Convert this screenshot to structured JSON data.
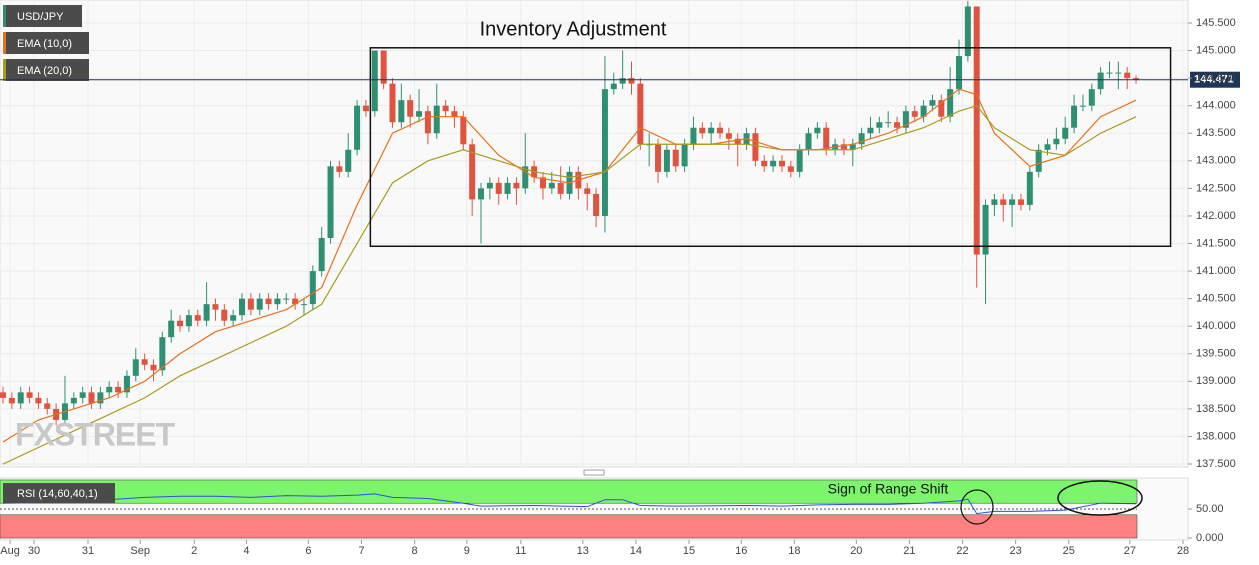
{
  "chart_data": {
    "type": "candlestick",
    "title": "Inventory Adjustment",
    "symbol": "USD/JPY",
    "watermark": "FXSTREET",
    "colors": {
      "up": "#2f8f72",
      "down": "#e0533f",
      "last": "#1e3557"
    },
    "xlim": [
      -0.34,
      133.87
    ],
    "xticks": [
      {
        "value": 0.8,
        "label": "Aug"
      },
      {
        "value": 3.5,
        "label": "30"
      },
      {
        "value": 9.6,
        "label": "31"
      },
      {
        "value": 15.5,
        "label": "Sep"
      },
      {
        "value": 21.6,
        "label": "2"
      },
      {
        "value": 27.5,
        "label": "4"
      },
      {
        "value": 34.5,
        "label": "6"
      },
      {
        "value": 40.5,
        "label": "7"
      },
      {
        "value": 46.5,
        "label": "8"
      },
      {
        "value": 52.4,
        "label": "9"
      },
      {
        "value": 58.5,
        "label": "11"
      },
      {
        "value": 65.5,
        "label": "13"
      },
      {
        "value": 71.5,
        "label": "14"
      },
      {
        "value": 77.5,
        "label": "15"
      },
      {
        "value": 83.4,
        "label": "16"
      },
      {
        "value": 89.4,
        "label": "18"
      },
      {
        "value": 96.4,
        "label": "20"
      },
      {
        "value": 102.4,
        "label": "21"
      },
      {
        "value": 108.4,
        "label": "22"
      },
      {
        "value": 114.4,
        "label": "23"
      },
      {
        "value": 120.4,
        "label": "25"
      },
      {
        "value": 127.3,
        "label": "27"
      },
      {
        "value": 133.3,
        "label": "28"
      }
    ],
    "ylim": [
      137.446,
      145.917
    ],
    "yticks": [
      {
        "value": 137.5,
        "label": "137.500"
      },
      {
        "value": 138,
        "label": "138.000"
      },
      {
        "value": 138.5,
        "label": "138.500"
      },
      {
        "value": 139,
        "label": "139.000"
      },
      {
        "value": 139.5,
        "label": "139.500"
      },
      {
        "value": 140,
        "label": "140.000"
      },
      {
        "value": 140.5,
        "label": "140.500"
      },
      {
        "value": 141,
        "label": "141.000"
      },
      {
        "value": 141.5,
        "label": "141.500"
      },
      {
        "value": 142,
        "label": "142.000"
      },
      {
        "value": 142.5,
        "label": "142.500"
      },
      {
        "value": 143,
        "label": "143.000"
      },
      {
        "value": 143.5,
        "label": "143.500"
      },
      {
        "value": 144,
        "label": "144.000"
      },
      {
        "value": 144.5,
        "label": "144.500"
      },
      {
        "value": 145,
        "label": "145.000"
      },
      {
        "value": 145.5,
        "label": "145.500"
      }
    ],
    "grid": true,
    "open": [
      138.8,
      138.7,
      138.6,
      138.8,
      138.7,
      138.6,
      138.5,
      138.3,
      138.6,
      138.7,
      138.8,
      138.6,
      138.8,
      138.9,
      138.8,
      139.1,
      139.4,
      139.3,
      139.2,
      139.8,
      140.1,
      140.0,
      140.2,
      140.1,
      140.4,
      140.3,
      140.1,
      140.2,
      140.5,
      140.3,
      140.5,
      140.4,
      140.5,
      140.5,
      140.4,
      140.4,
      141.0,
      141.6,
      142.9,
      142.8,
      143.2,
      144.0,
      143.9,
      145.0,
      144.4,
      143.7,
      144.1,
      143.8,
      143.9,
      143.5,
      144.0,
      143.9,
      143.8,
      143.3,
      142.3,
      142.5,
      142.6,
      142.4,
      142.6,
      142.5,
      142.9,
      142.7,
      142.5,
      142.6,
      142.4,
      142.8,
      142.5,
      142.4,
      142.0,
      144.3,
      144.4,
      144.5,
      144.4,
      143.3,
      143.3,
      142.8,
      143.2,
      142.9,
      143.3,
      143.6,
      143.5,
      143.6,
      143.5,
      143.4,
      143.3,
      143.5,
      143.0,
      142.9,
      143.0,
      142.9,
      142.8,
      143.2,
      143.5,
      143.6,
      143.2,
      143.3,
      143.2,
      143.3,
      143.5,
      143.6,
      143.7,
      143.7,
      143.6,
      143.9,
      143.8,
      144.0,
      144.1,
      143.8,
      144.3,
      144.9,
      145.8,
      141.3,
      142.2,
      142.3,
      142.2,
      142.3,
      142.2,
      142.8,
      143.2,
      143.3,
      143.4,
      143.6,
      144.0,
      144.0,
      144.3,
      144.6,
      144.6,
      144.6,
      144.5
    ],
    "high": [
      138.9,
      138.8,
      138.9,
      138.9,
      138.8,
      138.7,
      138.6,
      139.1,
      138.8,
      138.9,
      138.9,
      138.9,
      139.0,
      139.0,
      139.2,
      139.6,
      139.5,
      139.4,
      139.9,
      140.3,
      140.2,
      140.3,
      140.3,
      140.8,
      140.5,
      140.4,
      140.3,
      140.6,
      140.6,
      140.6,
      140.6,
      140.6,
      140.6,
      140.6,
      140.5,
      141.1,
      141.8,
      143.0,
      143.0,
      143.5,
      144.1,
      144.1,
      145.0,
      145.0,
      144.5,
      144.4,
      144.2,
      144.3,
      144.0,
      144.4,
      144.1,
      144.0,
      143.9,
      143.4,
      142.6,
      142.7,
      142.7,
      142.7,
      142.7,
      143.5,
      143.0,
      142.8,
      142.8,
      142.9,
      142.9,
      142.9,
      142.6,
      142.5,
      144.9,
      144.6,
      145.0,
      144.8,
      144.5,
      143.5,
      143.4,
      143.3,
      143.3,
      143.4,
      143.8,
      143.7,
      143.7,
      143.7,
      143.6,
      143.5,
      143.6,
      143.6,
      143.1,
      143.1,
      143.1,
      143.0,
      143.3,
      143.6,
      143.7,
      143.7,
      143.4,
      143.4,
      143.4,
      143.6,
      143.8,
      143.8,
      143.9,
      143.8,
      144.0,
      144.0,
      144.1,
      144.2,
      144.2,
      144.7,
      145.2,
      145.9,
      145.8,
      142.3,
      142.4,
      142.4,
      142.4,
      142.4,
      142.9,
      143.3,
      143.4,
      143.6,
      143.8,
      144.2,
      144.2,
      144.4,
      144.7,
      144.8,
      144.8,
      144.7,
      144.55
    ],
    "low": [
      138.6,
      138.5,
      138.5,
      138.6,
      138.5,
      138.4,
      138.2,
      138.2,
      138.5,
      138.6,
      138.5,
      138.5,
      138.7,
      138.7,
      138.7,
      139.0,
      139.2,
      139.0,
      139.1,
      139.7,
      139.9,
      139.9,
      140.0,
      140.0,
      140.1,
      140.0,
      140.0,
      140.1,
      140.2,
      140.2,
      140.3,
      140.3,
      140.4,
      140.3,
      140.2,
      140.3,
      140.9,
      141.5,
      142.7,
      142.7,
      143.1,
      143.8,
      143.8,
      144.3,
      143.6,
      143.6,
      143.6,
      143.7,
      143.3,
      143.4,
      143.8,
      143.6,
      143.2,
      142.0,
      141.5,
      142.3,
      142.2,
      142.3,
      142.2,
      142.4,
      142.6,
      142.3,
      142.4,
      142.3,
      142.3,
      142.3,
      142.1,
      141.8,
      141.7,
      144.2,
      144.3,
      144.2,
      143.2,
      142.9,
      142.6,
      142.7,
      142.8,
      142.8,
      143.2,
      143.4,
      143.3,
      143.4,
      143.2,
      142.9,
      143.2,
      142.9,
      142.8,
      142.8,
      142.8,
      142.7,
      142.7,
      143.1,
      143.4,
      143.1,
      143.1,
      143.1,
      142.9,
      143.2,
      143.4,
      143.5,
      143.6,
      143.5,
      143.5,
      143.7,
      143.7,
      143.9,
      143.7,
      143.7,
      144.2,
      144.8,
      140.7,
      140.4,
      142.0,
      141.9,
      141.8,
      142.1,
      142.1,
      142.7,
      143.1,
      143.2,
      143.3,
      143.5,
      143.9,
      143.9,
      144.2,
      144.5,
      144.3,
      144.3,
      144.4
    ],
    "close": [
      138.7,
      138.6,
      138.8,
      138.7,
      138.6,
      138.5,
      138.3,
      138.6,
      138.7,
      138.8,
      138.6,
      138.8,
      138.9,
      138.8,
      139.1,
      139.4,
      139.3,
      139.2,
      139.8,
      140.1,
      140.0,
      140.2,
      140.1,
      140.4,
      140.3,
      140.1,
      140.2,
      140.5,
      140.3,
      140.5,
      140.4,
      140.5,
      140.5,
      140.4,
      140.4,
      141.0,
      141.6,
      142.9,
      142.8,
      143.2,
      144.0,
      143.9,
      145.0,
      144.4,
      143.7,
      144.1,
      143.8,
      143.9,
      143.5,
      144.0,
      143.9,
      143.8,
      143.3,
      142.3,
      142.5,
      142.6,
      142.4,
      142.6,
      142.5,
      142.9,
      142.7,
      142.5,
      142.6,
      142.4,
      142.8,
      142.5,
      142.4,
      142.0,
      144.3,
      144.4,
      144.5,
      144.4,
      143.3,
      143.3,
      142.8,
      143.2,
      142.9,
      143.3,
      143.6,
      143.5,
      143.6,
      143.5,
      143.4,
      143.3,
      143.5,
      143.0,
      142.9,
      143.0,
      142.9,
      142.8,
      143.2,
      143.5,
      143.6,
      143.2,
      143.3,
      143.2,
      143.3,
      143.5,
      143.6,
      143.7,
      143.7,
      143.6,
      143.9,
      143.8,
      144.0,
      144.1,
      143.8,
      144.3,
      144.9,
      145.8,
      141.3,
      142.2,
      142.3,
      142.2,
      142.3,
      142.2,
      142.8,
      143.2,
      143.3,
      143.4,
      143.6,
      144.0,
      144.0,
      144.3,
      144.6,
      144.6,
      144.6,
      144.5,
      144.471
    ],
    "ema": [
      {
        "name": "EMA (10,0)",
        "color": "#e8711c",
        "x": [
          0,
          4,
          8,
          12,
          16,
          20,
          24,
          28,
          32,
          36,
          40,
          44,
          48,
          52,
          56,
          60,
          64,
          68,
          72,
          76,
          80,
          84,
          88,
          92,
          96,
          100,
          104,
          108,
          110,
          112,
          116,
          120,
          124,
          128
        ],
        "values": [
          137.9,
          138.3,
          138.5,
          138.7,
          139.0,
          139.5,
          139.9,
          140.1,
          140.3,
          140.7,
          142.2,
          143.5,
          143.8,
          143.8,
          143.1,
          142.7,
          142.6,
          142.8,
          143.6,
          143.3,
          143.3,
          143.4,
          143.2,
          143.2,
          143.3,
          143.5,
          143.8,
          144.3,
          144.2,
          143.5,
          142.9,
          143.1,
          143.8,
          144.1
        ]
      },
      {
        "name": "EMA (20,0)",
        "color": "#a89c1e",
        "x": [
          0,
          4,
          8,
          12,
          16,
          20,
          24,
          28,
          32,
          36,
          40,
          44,
          48,
          52,
          56,
          60,
          64,
          68,
          72,
          76,
          80,
          84,
          88,
          92,
          96,
          100,
          104,
          108,
          110,
          112,
          116,
          120,
          124,
          128
        ],
        "values": [
          137.5,
          137.8,
          138.1,
          138.4,
          138.7,
          139.1,
          139.4,
          139.7,
          140.0,
          140.4,
          141.5,
          142.6,
          143.0,
          143.2,
          143.0,
          142.8,
          142.7,
          142.8,
          143.3,
          143.3,
          143.3,
          143.3,
          143.2,
          143.2,
          143.2,
          143.4,
          143.6,
          143.9,
          144.0,
          143.6,
          143.2,
          143.1,
          143.5,
          143.8
        ]
      }
    ],
    "range_box": {
      "x": [
        41.5,
        131.9
      ],
      "y": [
        141.45,
        145.05
      ]
    },
    "rsi": {
      "name": "RSI (14,60,40,1)",
      "annotation": "Sign of Range Shift",
      "color": "#2a4fe0",
      "ylim": [
        -3.4,
        103.4
      ],
      "yticks": [
        {
          "value": 0,
          "label": "0.000"
        },
        {
          "value": 50,
          "label": "50.00"
        }
      ],
      "bands": [
        {
          "from": 60,
          "to": 100,
          "color": "#7cf56c"
        },
        {
          "from": 0,
          "to": 40,
          "color": "#ff8080"
        }
      ],
      "x": [
        0,
        8,
        14,
        16,
        20,
        24,
        28,
        32,
        36,
        40,
        42,
        44,
        48,
        52,
        54,
        60,
        66,
        68,
        70,
        72,
        76,
        84,
        88,
        92,
        96,
        100,
        104,
        108,
        109,
        110,
        112,
        116,
        120,
        124,
        128
      ],
      "values": [
        60,
        62,
        68,
        70,
        72,
        72,
        70,
        73,
        72,
        74,
        76,
        70,
        68,
        60,
        55,
        56,
        54,
        66,
        66,
        56,
        55,
        56,
        55,
        57,
        58,
        58,
        60,
        64,
        67,
        42,
        46,
        46,
        48,
        60,
        59
      ]
    }
  }
}
